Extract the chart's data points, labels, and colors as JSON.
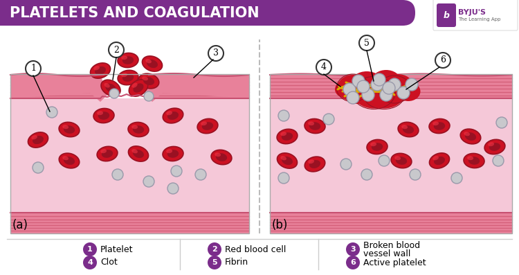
{
  "title": "PLATELETS AND COAGULATION",
  "title_bg_color": "#7B2D8B",
  "title_text_color": "#FFFFFF",
  "background_color": "#FFFFFF",
  "legend_items": [
    {
      "num": "1",
      "label": "Platelet"
    },
    {
      "num": "2",
      "label": "Red blood cell"
    },
    {
      "num": "3",
      "label": "Broken blood\nvessel wall"
    },
    {
      "num": "4",
      "label": "Clot"
    },
    {
      "num": "5",
      "label": "Fibrin"
    },
    {
      "num": "6",
      "label": "Active platelet"
    }
  ],
  "legend_circle_color": "#7B2D8B",
  "panel_a_label": "(a)",
  "panel_b_label": "(b)",
  "vessel_interior_color": "#f5c8d8",
  "vessel_wall_color": "#e8819a",
  "vessel_wall_stripe_color": "#d4607a",
  "vessel_border_color": "#c85070",
  "rbc_fill": "#cc1122",
  "rbc_dark": "#991122",
  "rbc_highlight": "#dd4444",
  "platelet_fill": "#c8c8cc",
  "platelet_edge": "#9999aa",
  "clot_color": "#cc1122",
  "fibrin_color": "#ddaa00",
  "panel_bg": "#f9f9f9"
}
